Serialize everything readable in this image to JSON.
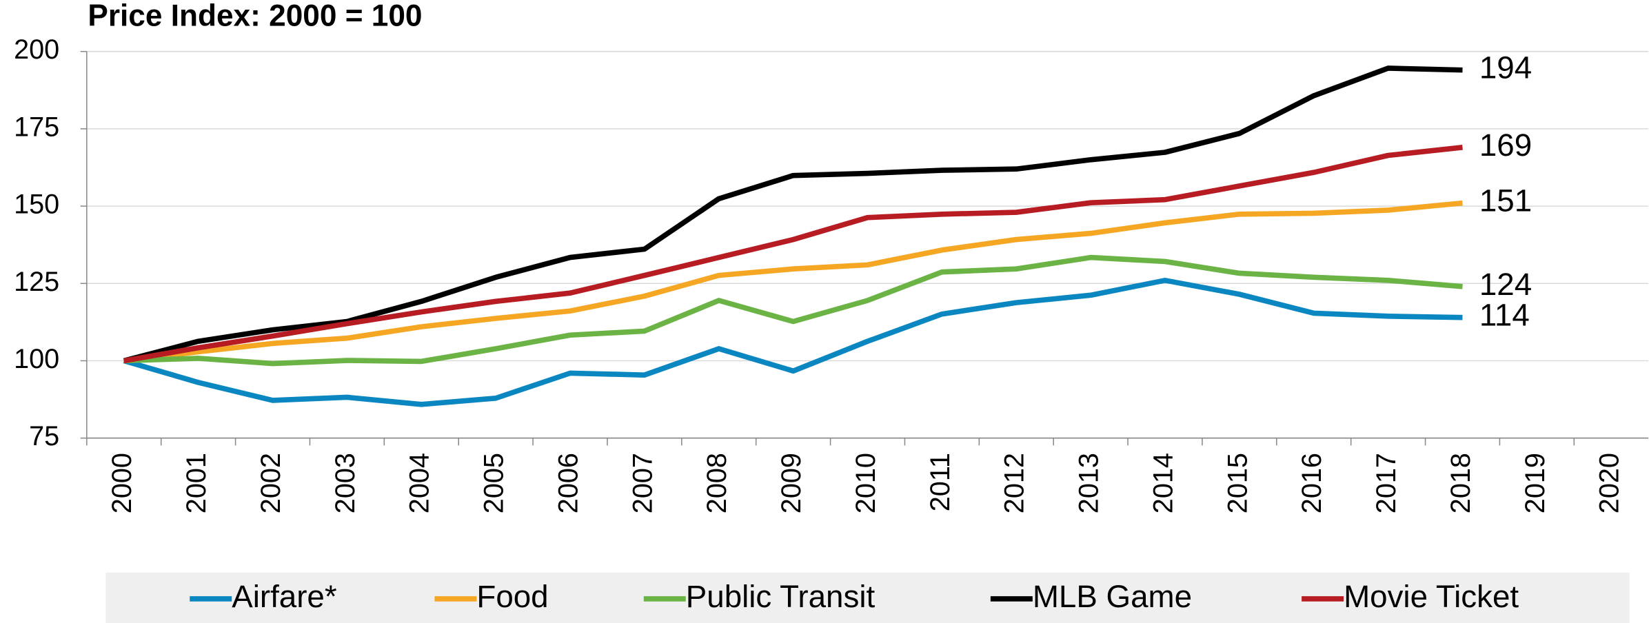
{
  "chart_data": {
    "type": "line",
    "title": "Price Index: 2000 = 100",
    "categories": [
      "2000",
      "2001",
      "2002",
      "2003",
      "2004",
      "2005",
      "2006",
      "2007",
      "2008",
      "2009",
      "2010",
      "2011",
      "2012",
      "2013",
      "2014",
      "2015",
      "2016",
      "2017",
      "2018",
      "2019",
      "2020"
    ],
    "ylim": [
      75,
      200
    ],
    "yticks": [
      75,
      100,
      125,
      150,
      175,
      200
    ],
    "grid": true,
    "legend": "bottom",
    "series": [
      {
        "name": "Airfare*",
        "color": "#0a86c0",
        "values": [
          100,
          93,
          87.2,
          88.2,
          85.9,
          87.9,
          96,
          95.4,
          103.9,
          96.7,
          106.3,
          115.1,
          118.8,
          121.2,
          126,
          121.5,
          115.4,
          114.4,
          114,
          null,
          null
        ]
      },
      {
        "name": "Food",
        "color": "#f5a623",
        "values": [
          100,
          102.9,
          105.6,
          107.3,
          111,
          113.7,
          116.1,
          120.9,
          127.6,
          129.7,
          131,
          135.8,
          139.2,
          141.2,
          144.6,
          147.4,
          147.7,
          148.7,
          151,
          null,
          null
        ]
      },
      {
        "name": "Public Transit",
        "color": "#6ab344",
        "values": [
          100,
          100.8,
          99.1,
          100.1,
          99.8,
          103.9,
          108.3,
          109.6,
          119.5,
          112.7,
          119.5,
          128.7,
          129.7,
          133.4,
          132.1,
          128.3,
          127,
          126,
          124,
          null,
          null
        ]
      },
      {
        "name": "MLB Game",
        "color": "#000000",
        "values": [
          100,
          106.3,
          110,
          112.7,
          119.2,
          127,
          133.4,
          136.1,
          152.4,
          159.9,
          160.6,
          161.6,
          162,
          165,
          167.4,
          173.5,
          185.7,
          194.6,
          194,
          null,
          null
        ]
      },
      {
        "name": "Movie Ticket",
        "color": "#b71c23",
        "values": [
          100,
          104.2,
          108,
          112,
          115.8,
          119.2,
          121.9,
          127.6,
          133.4,
          139.2,
          146.3,
          147.4,
          148,
          151.1,
          152.1,
          156.5,
          160.9,
          166.4,
          169,
          null,
          null
        ]
      }
    ]
  }
}
